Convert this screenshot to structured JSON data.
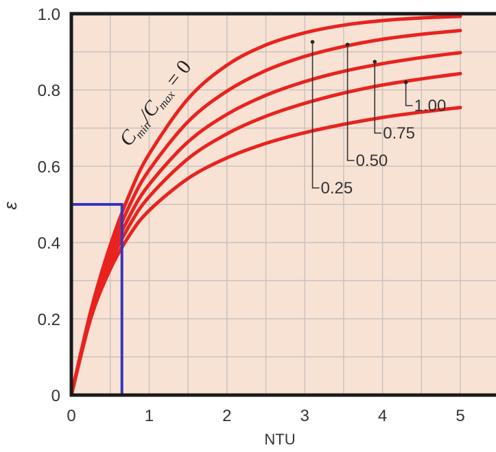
{
  "chart_data": {
    "type": "line",
    "title": "",
    "xlabel": "NTU",
    "ylabel": "ε",
    "xlim": [
      0,
      5
    ],
    "ylim": [
      0,
      1
    ],
    "x_ticks": [
      "0",
      "1",
      "2",
      "3",
      "4",
      "5"
    ],
    "y_ticks": [
      "0",
      "0.2",
      "0.4",
      "0.6",
      "0.8",
      "1.0"
    ],
    "grid": true,
    "background_color": "#f8e2d4",
    "line_color": "#e8231f",
    "marker_color": "#3535c0",
    "curve_label_prefix": "C",
    "curve_label_sub1": "min",
    "curve_label_mid": "/C",
    "curve_label_sub2": "max",
    "curve_label_suffix": " = 0",
    "series": [
      {
        "ratio": 0,
        "x": [
          0,
          0.25,
          0.5,
          0.75,
          1,
          1.5,
          2,
          2.5,
          3,
          3.5,
          4,
          4.5,
          5
        ],
        "y": [
          0,
          0.221,
          0.393,
          0.528,
          0.632,
          0.777,
          0.865,
          0.918,
          0.95,
          0.97,
          0.982,
          0.989,
          0.993
        ]
      },
      {
        "ratio": 0.25,
        "label": "0.25",
        "x": [
          0,
          0.25,
          0.5,
          0.75,
          1,
          1.5,
          2,
          2.5,
          3,
          3.5,
          4,
          4.5,
          5
        ],
        "y": [
          0,
          0.216,
          0.376,
          0.498,
          0.59,
          0.717,
          0.797,
          0.851,
          0.888,
          0.914,
          0.933,
          0.946,
          0.956
        ]
      },
      {
        "ratio": 0.5,
        "label": "0.50",
        "x": [
          0,
          0.25,
          0.5,
          0.75,
          1,
          1.5,
          2,
          2.5,
          3,
          3.5,
          4,
          4.5,
          5
        ],
        "y": [
          0,
          0.211,
          0.36,
          0.47,
          0.552,
          0.664,
          0.736,
          0.786,
          0.822,
          0.849,
          0.869,
          0.885,
          0.898
        ]
      },
      {
        "ratio": 0.75,
        "label": "0.75",
        "x": [
          0,
          0.25,
          0.5,
          0.75,
          1,
          1.5,
          2,
          2.5,
          3,
          3.5,
          4,
          4.5,
          5
        ],
        "y": [
          0,
          0.206,
          0.345,
          0.446,
          0.52,
          0.62,
          0.685,
          0.731,
          0.765,
          0.792,
          0.813,
          0.829,
          0.843
        ]
      },
      {
        "ratio": 1.0,
        "label": "1.00",
        "x": [
          0,
          0.25,
          0.5,
          0.75,
          1,
          1.5,
          2,
          2.5,
          3,
          3.5,
          4,
          4.5,
          5
        ],
        "y": [
          0,
          0.201,
          0.33,
          0.42,
          0.484,
          0.568,
          0.622,
          0.66,
          0.688,
          0.71,
          0.728,
          0.742,
          0.754
        ]
      }
    ],
    "callouts": [
      {
        "label": "0.25",
        "x": 3.1,
        "y": 0.926
      },
      {
        "label": "0.50",
        "x": 3.55,
        "y": 0.919
      },
      {
        "label": "0.75",
        "x": 3.9,
        "y": 0.874
      },
      {
        "label": "1.00",
        "x": 4.3,
        "y": 0.82
      }
    ],
    "reference_point": {
      "x": 0.65,
      "y": 0.5
    }
  }
}
